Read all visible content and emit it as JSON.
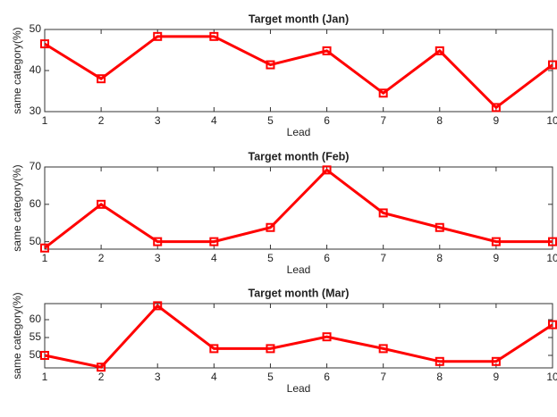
{
  "chart_data": [
    {
      "type": "line",
      "title": "Target month (Jan)",
      "xlabel": "Lead",
      "ylabel": "same category(%)",
      "x": [
        1,
        2,
        3,
        4,
        5,
        6,
        7,
        8,
        9,
        10
      ],
      "values": [
        46.5,
        38,
        48.3,
        48.3,
        41.4,
        44.8,
        34.5,
        44.8,
        31,
        41.4
      ],
      "color": "#ff0000",
      "xlim": [
        1,
        10
      ],
      "xticks": [
        1,
        2,
        3,
        4,
        5,
        6,
        7,
        8,
        9,
        10
      ],
      "ylim": [
        30,
        50
      ],
      "yticks": [
        30,
        40,
        50
      ]
    },
    {
      "type": "line",
      "title": "Target month (Feb)",
      "xlabel": "Lead",
      "ylabel": "same category(%)",
      "x": [
        1,
        2,
        3,
        4,
        5,
        6,
        7,
        8,
        9,
        10
      ],
      "values": [
        48.3,
        60,
        50,
        50,
        53.8,
        69.2,
        57.7,
        53.8,
        50,
        50
      ],
      "color": "#ff0000",
      "xlim": [
        1,
        10
      ],
      "xticks": [
        1,
        2,
        3,
        4,
        5,
        6,
        7,
        8,
        9,
        10
      ],
      "ylim": [
        48,
        70
      ],
      "yticks": [
        50,
        60,
        70
      ]
    },
    {
      "type": "line",
      "title": "Target month (Mar)",
      "xlabel": "Lead",
      "ylabel": "same category(%)",
      "x": [
        1,
        2,
        3,
        4,
        5,
        6,
        7,
        8,
        9,
        10
      ],
      "values": [
        50,
        46.7,
        63.9,
        51.9,
        51.9,
        55.2,
        51.9,
        48.3,
        48.3,
        58.6
      ],
      "color": "#ff0000",
      "xlim": [
        1,
        10
      ],
      "xticks": [
        1,
        2,
        3,
        4,
        5,
        6,
        7,
        8,
        9,
        10
      ],
      "ylim": [
        46.5,
        64.5
      ],
      "yticks": [
        50,
        55,
        60
      ]
    }
  ]
}
